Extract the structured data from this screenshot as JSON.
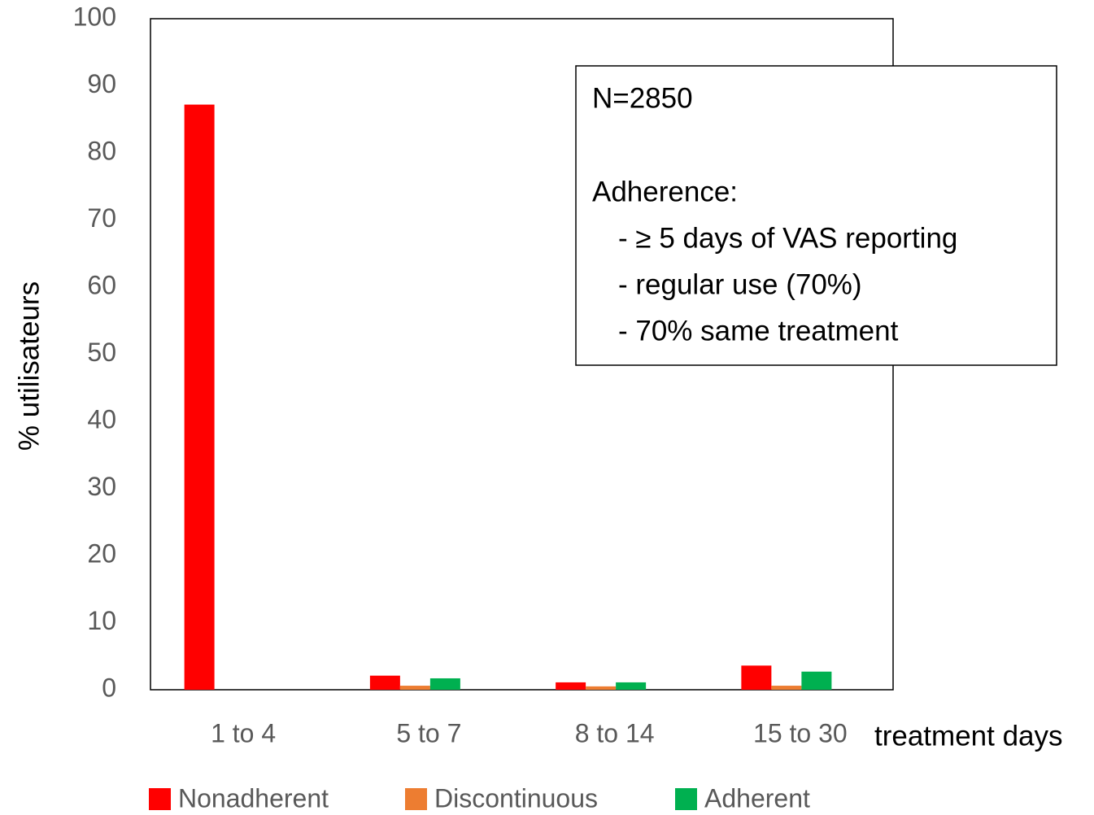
{
  "chart_data": {
    "type": "bar",
    "categories": [
      "1 to 4",
      "5 to 7",
      "8 to 14",
      "15 to 30"
    ],
    "x_label": "treatment days",
    "y_label": "% utilisateurs",
    "series": [
      {
        "name": "Nonadherent",
        "color": "#ff0000",
        "values": [
          87.2,
          2.1,
          1.1,
          3.6
        ]
      },
      {
        "name": "Discontinuous",
        "color": "#ed7d31",
        "values": [
          0,
          0.6,
          0.5,
          0.6
        ]
      },
      {
        "name": "Adherent",
        "color": "#00b050",
        "values": [
          0,
          1.7,
          1.1,
          2.7
        ]
      }
    ],
    "ylim": [
      0,
      100
    ],
    "yticks": [
      0,
      10,
      20,
      30,
      40,
      50,
      60,
      70,
      80,
      90,
      100
    ],
    "grid": false,
    "legend": "bottom",
    "annotations": [
      "N=2850",
      "Adherence:",
      "- ≥ 5 days of VAS reporting",
      "- regular use (70%)",
      "- 70% same treatment"
    ]
  }
}
